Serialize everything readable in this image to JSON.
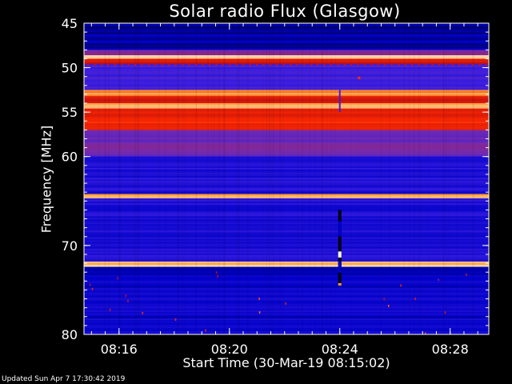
{
  "chart_data": {
    "type": "heatmap",
    "title": "Solar radio Flux (Glasgow)",
    "xlabel": "Start Time (30-Mar-19 08:15:02)",
    "ylabel": "Frequency [MHz]",
    "xlim_minutes_from_0815": [
      -0.27,
      14.4
    ],
    "ylim": [
      45,
      80
    ],
    "y_axis_inverted": true,
    "x_tick_labels": [
      "08:16",
      "08:20",
      "08:24",
      "08:28"
    ],
    "x_tick_minutes_from_0815": [
      1,
      5,
      9,
      13
    ],
    "y_ticks": [
      45,
      50,
      55,
      60,
      70,
      80
    ],
    "y_tick_labels": [
      "45",
      "50",
      "55",
      "60",
      "70",
      "80"
    ],
    "colormap": [
      "#000000",
      "#0000c8",
      "#3a1ee0",
      "#7a2aa8",
      "#c01010",
      "#ff2a00",
      "#ff9933",
      "#ffffff"
    ],
    "background_intensity": 0.16,
    "bands": [
      {
        "f1": 45.0,
        "f2": 48.0,
        "intensity": 0.12
      },
      {
        "f1": 48.0,
        "f2": 48.6,
        "intensity": 0.45
      },
      {
        "f1": 48.6,
        "f2": 49.0,
        "intensity": 0.97
      },
      {
        "f1": 49.0,
        "f2": 49.6,
        "intensity": 0.6
      },
      {
        "f1": 49.6,
        "f2": 52.5,
        "intensity": 0.3
      },
      {
        "f1": 52.5,
        "f2": 53.2,
        "intensity": 0.85
      },
      {
        "f1": 53.2,
        "f2": 54.0,
        "intensity": 0.62
      },
      {
        "f1": 54.0,
        "f2": 54.6,
        "intensity": 0.88
      },
      {
        "f1": 54.6,
        "f2": 57.0,
        "intensity": 0.68
      },
      {
        "f1": 57.0,
        "f2": 60.0,
        "intensity": 0.4
      },
      {
        "f1": 60.0,
        "f2": 64.2,
        "intensity": 0.22
      },
      {
        "f1": 64.2,
        "f2": 64.7,
        "intensity": 0.88
      },
      {
        "f1": 64.7,
        "f2": 71.8,
        "intensity": 0.22
      },
      {
        "f1": 71.8,
        "f2": 72.4,
        "intensity": 0.92
      },
      {
        "f1": 72.4,
        "f2": 80.0,
        "intensity": 0.16
      }
    ],
    "events": [
      {
        "minute": 9.0,
        "f1": 66.0,
        "f2": 74.5,
        "kind": "burst"
      },
      {
        "minute": 9.0,
        "f1": 52.5,
        "f2": 55.0,
        "kind": "spike"
      },
      {
        "minute": 9.7,
        "f1": 51.0,
        "f2": 51.3,
        "kind": "dot"
      }
    ]
  },
  "footer": {
    "updated": "Updated Sun Apr  7 17:30:42 2019"
  }
}
